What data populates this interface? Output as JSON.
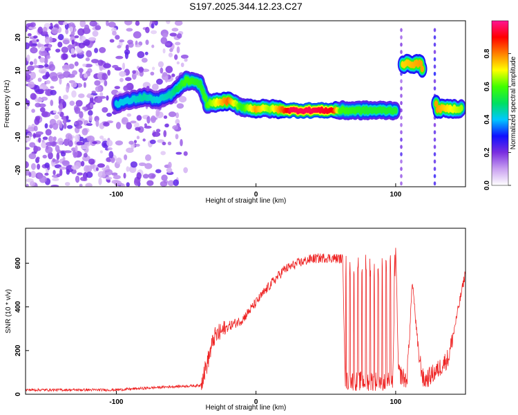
{
  "title": "S197.2025.344.12.23.C27",
  "chart_data": [
    {
      "type": "heatmap",
      "title": "S197.2025.344.12.23.C27",
      "xlabel": "Height of straight line (km)",
      "ylabel": "Frequency (Hz)",
      "xlim": [
        -165,
        150
      ],
      "ylim": [
        -25,
        25
      ],
      "x_ticks": [
        -100,
        0,
        100
      ],
      "y_ticks": [
        -20,
        -10,
        0,
        10,
        20
      ],
      "x_tick_labels": [
        "-100",
        "0",
        "100"
      ],
      "y_tick_labels": [
        "-20",
        "-10",
        "0",
        "10",
        "20"
      ],
      "colorbar": {
        "label": "Normalized spectral amplitude",
        "range": [
          0.0,
          1.0
        ],
        "ticks": [
          "0.0",
          "0.2",
          "0.4",
          "0.6",
          "0.8"
        ],
        "colors": [
          "#ffffff",
          "#c9a0f0",
          "#7a2ee0",
          "#1010ff",
          "#00c8ff",
          "#00e060",
          "#40ff00",
          "#ffff00",
          "#ff8000",
          "#ff0000",
          "#ff1493"
        ]
      },
      "ridge": [
        {
          "x": -100,
          "y": 0,
          "amp": 0.35
        },
        {
          "x": -90,
          "y": 1,
          "amp": 0.35
        },
        {
          "x": -80,
          "y": 2,
          "amp": 0.4
        },
        {
          "x": -70,
          "y": 1,
          "amp": 0.35
        },
        {
          "x": -60,
          "y": 3,
          "amp": 0.4
        },
        {
          "x": -50,
          "y": 7,
          "amp": 0.55
        },
        {
          "x": -40,
          "y": 6,
          "amp": 0.5
        },
        {
          "x": -35,
          "y": 0,
          "amp": 0.55
        },
        {
          "x": -20,
          "y": 0.8,
          "amp": 0.8
        },
        {
          "x": -10,
          "y": -1,
          "amp": 0.5
        },
        {
          "x": 0,
          "y": -1.5,
          "amp": 0.75
        },
        {
          "x": 10,
          "y": -1.5,
          "amp": 0.6
        },
        {
          "x": 25,
          "y": -2,
          "amp": 0.95
        },
        {
          "x": 40,
          "y": -2,
          "amp": 0.95
        },
        {
          "x": 55,
          "y": -2,
          "amp": 0.9
        },
        {
          "x": 60,
          "y": -2,
          "amp": 0.55
        },
        {
          "x": 80,
          "y": -2,
          "amp": 0.5
        },
        {
          "x": 100,
          "y": -2,
          "amp": 0.5
        },
        {
          "x": 105,
          "y": 12,
          "amp": 0.7
        },
        {
          "x": 118,
          "y": 12,
          "amp": 0.75
        },
        {
          "x": 130,
          "y": -1.5,
          "amp": 0.75
        },
        {
          "x": 148,
          "y": -1.5,
          "amp": 0.6
        }
      ]
    },
    {
      "type": "line",
      "xlabel": "Height of straight line (km)",
      "ylabel": "SNR (10 * v/v)",
      "xlim": [
        -165,
        150
      ],
      "ylim": [
        0,
        760
      ],
      "x_ticks": [
        -100,
        0,
        100
      ],
      "y_ticks": [
        0,
        200,
        400,
        600
      ],
      "x_tick_labels": [
        "-100",
        "0",
        "100"
      ],
      "y_tick_labels": [
        "0",
        "200",
        "400",
        "600"
      ],
      "color": "#ee2222",
      "envelope": [
        {
          "x": -165,
          "y": 20
        },
        {
          "x": -100,
          "y": 20
        },
        {
          "x": -60,
          "y": 35
        },
        {
          "x": -40,
          "y": 40
        },
        {
          "x": -35,
          "y": 140
        },
        {
          "x": -30,
          "y": 260
        },
        {
          "x": -20,
          "y": 310
        },
        {
          "x": -10,
          "y": 340
        },
        {
          "x": 0,
          "y": 420
        },
        {
          "x": 10,
          "y": 500
        },
        {
          "x": 20,
          "y": 570
        },
        {
          "x": 30,
          "y": 600
        },
        {
          "x": 40,
          "y": 620
        },
        {
          "x": 50,
          "y": 625
        },
        {
          "x": 62,
          "y": 620
        },
        {
          "x": 64,
          "y": 60
        },
        {
          "x": 98,
          "y": 60
        },
        {
          "x": 100,
          "y": 690
        },
        {
          "x": 102,
          "y": 100
        },
        {
          "x": 108,
          "y": 60
        },
        {
          "x": 112,
          "y": 520
        },
        {
          "x": 116,
          "y": 200
        },
        {
          "x": 120,
          "y": 60
        },
        {
          "x": 130,
          "y": 110
        },
        {
          "x": 138,
          "y": 170
        },
        {
          "x": 150,
          "y": 560
        }
      ],
      "teeth_range": [
        64,
        100
      ],
      "teeth_peak": 600
    }
  ]
}
